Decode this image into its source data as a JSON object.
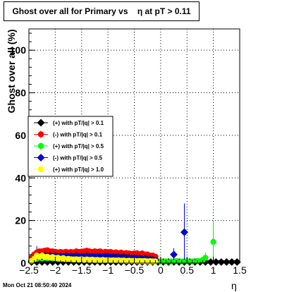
{
  "title": "Ghost over all for Primary vs    η at pT > 0.11",
  "footer": "Mon Oct 21 08:50:40 2024",
  "chart_data": {
    "type": "scatter",
    "title": "Ghost over all for Primary vs    η at pT > 0.11",
    "xlabel": "η",
    "ylabel": "Ghost over all (%)",
    "xlim": [
      -2.5,
      1.5
    ],
    "ylim": [
      0,
      110
    ],
    "x_ticks": [
      -2.5,
      -2,
      -1.5,
      -1,
      -0.5,
      0,
      0.5,
      1,
      1.5
    ],
    "x_tick_labels": [
      "−2.5",
      "−2",
      "−1.5",
      "−1",
      "−0.5",
      "0",
      "0.5",
      "1",
      "1.5"
    ],
    "y_ticks": [
      0,
      20,
      40,
      60,
      80,
      100
    ],
    "y_tick_labels": [
      "0",
      "20",
      "40",
      "60",
      "80",
      "100"
    ],
    "grid": true,
    "legend_position": "left-middle",
    "series": [
      {
        "name": "(+) with pT/|q| > 0.1",
        "color": "#000000",
        "marker": "diamond",
        "points": [
          [
            -2.45,
            0.5
          ],
          [
            -2.35,
            0.5
          ],
          [
            -2.25,
            0.5
          ],
          [
            -2.15,
            0.5
          ],
          [
            -2.05,
            0.5
          ],
          [
            -1.95,
            0.5
          ],
          [
            -1.85,
            0.5
          ],
          [
            -1.75,
            0.5
          ],
          [
            -1.65,
            0.5
          ],
          [
            -1.55,
            0.5
          ],
          [
            -1.45,
            0.5
          ],
          [
            -1.35,
            0.5
          ],
          [
            -1.25,
            0.5
          ],
          [
            -1.15,
            0.5
          ],
          [
            -1.05,
            0.5
          ],
          [
            -0.95,
            0.5
          ],
          [
            -0.85,
            0.5
          ],
          [
            -0.75,
            0.5
          ],
          [
            -0.65,
            0.5
          ],
          [
            -0.55,
            0.5
          ],
          [
            -0.45,
            0.5
          ],
          [
            -0.35,
            0.5
          ],
          [
            -0.25,
            0.5
          ],
          [
            -0.15,
            0.5
          ],
          [
            -0.05,
            0.5
          ],
          [
            0.05,
            0.5
          ],
          [
            0.15,
            0.5
          ],
          [
            0.25,
            0.5
          ],
          [
            0.35,
            0.5
          ],
          [
            0.45,
            0.5
          ],
          [
            0.55,
            0.5
          ],
          [
            0.65,
            0.5
          ],
          [
            0.75,
            0.5
          ],
          [
            0.85,
            0.5
          ],
          [
            0.95,
            0.5
          ],
          [
            1.05,
            0.5
          ],
          [
            1.15,
            0.5
          ],
          [
            1.25,
            0.5
          ],
          [
            1.35,
            0.5
          ],
          [
            1.45,
            0.5
          ]
        ]
      },
      {
        "name": "(-) with pT/|q| > 0.1",
        "color": "#ff0000",
        "marker": "circle",
        "points": [
          [
            -2.45,
            2.5
          ],
          [
            -2.4,
            4.0
          ],
          [
            -2.35,
            5.0
          ],
          [
            -2.3,
            5.5
          ],
          [
            -2.25,
            5.5
          ],
          [
            -2.2,
            5.8
          ],
          [
            -2.15,
            6.0
          ],
          [
            -2.1,
            5.5
          ],
          [
            -2.05,
            5.5
          ],
          [
            -2.0,
            5.3
          ],
          [
            -1.95,
            5.0
          ],
          [
            -1.9,
            5.2
          ],
          [
            -1.85,
            5.0
          ],
          [
            -1.8,
            5.3
          ],
          [
            -1.75,
            5.0
          ],
          [
            -1.7,
            5.2
          ],
          [
            -1.65,
            5.0
          ],
          [
            -1.6,
            5.5
          ],
          [
            -1.55,
            5.2
          ],
          [
            -1.5,
            5.4
          ],
          [
            -1.45,
            5.5
          ],
          [
            -1.4,
            5.8
          ],
          [
            -1.35,
            5.5
          ],
          [
            -1.3,
            5.2
          ],
          [
            -1.25,
            5.5
          ],
          [
            -1.2,
            5.3
          ],
          [
            -1.15,
            5.5
          ],
          [
            -1.1,
            5.0
          ],
          [
            -1.05,
            5.3
          ],
          [
            -1.0,
            5.0
          ],
          [
            -0.95,
            5.2
          ],
          [
            -0.9,
            4.8
          ],
          [
            -0.85,
            5.0
          ],
          [
            -0.8,
            4.7
          ],
          [
            -0.75,
            4.9
          ],
          [
            -0.7,
            4.5
          ],
          [
            -0.65,
            4.7
          ],
          [
            -0.6,
            4.5
          ],
          [
            -0.55,
            4.3
          ],
          [
            -0.5,
            4.5
          ],
          [
            -0.45,
            4.6
          ],
          [
            -0.4,
            4.2
          ],
          [
            -0.35,
            4.5
          ],
          [
            -0.3,
            4.0
          ],
          [
            -0.25,
            4.0
          ],
          [
            -0.2,
            3.5
          ],
          [
            -0.15,
            3.5
          ],
          [
            -0.1,
            3.0
          ]
        ]
      },
      {
        "name": "(+) with pT/|q| > 0.5",
        "color": "#00ff00",
        "marker": "circle",
        "points": [
          [
            -2.45,
            1.0
          ],
          [
            -2.4,
            1.8
          ],
          [
            -2.35,
            2.0
          ],
          [
            -2.3,
            2.5
          ],
          [
            -2.25,
            2.2
          ],
          [
            -2.2,
            2.5
          ],
          [
            -2.15,
            2.3
          ],
          [
            -2.1,
            2.5
          ],
          [
            -2.05,
            2.2
          ],
          [
            -2.0,
            2.4
          ],
          [
            -1.95,
            2.0
          ],
          [
            -1.9,
            2.2
          ],
          [
            -1.85,
            2.0
          ],
          [
            -1.8,
            2.3
          ],
          [
            -1.75,
            2.0
          ],
          [
            -1.7,
            2.2
          ],
          [
            -1.65,
            2.0
          ],
          [
            -1.6,
            2.2
          ],
          [
            -1.55,
            2.0
          ],
          [
            -1.5,
            2.3
          ],
          [
            -1.45,
            2.0
          ],
          [
            -1.4,
            2.2
          ],
          [
            -1.35,
            2.0
          ],
          [
            -1.3,
            2.1
          ],
          [
            -1.25,
            2.0
          ],
          [
            -1.2,
            2.2
          ],
          [
            -1.15,
            2.0
          ],
          [
            -1.1,
            2.1
          ],
          [
            -1.05,
            2.0
          ],
          [
            -1.0,
            2.2
          ],
          [
            -0.95,
            1.8
          ],
          [
            -0.9,
            2.0
          ],
          [
            -0.85,
            1.8
          ],
          [
            -0.8,
            2.0
          ],
          [
            -0.75,
            1.7
          ],
          [
            -0.7,
            1.9
          ],
          [
            -0.65,
            1.6
          ],
          [
            -0.6,
            1.8
          ],
          [
            -0.55,
            1.5
          ],
          [
            -0.5,
            1.7
          ],
          [
            -0.45,
            1.4
          ],
          [
            -0.4,
            1.6
          ],
          [
            -0.35,
            1.3
          ],
          [
            -0.3,
            1.5
          ],
          [
            -0.25,
            1.2
          ],
          [
            -0.2,
            1.3
          ],
          [
            -0.15,
            1.2
          ],
          [
            -0.1,
            1.0
          ],
          [
            0.0,
            0.8
          ],
          [
            0.1,
            0.8
          ],
          [
            0.2,
            0.8
          ],
          [
            0.3,
            0.9
          ],
          [
            0.4,
            0.8
          ],
          [
            0.5,
            0.9
          ],
          [
            0.6,
            0.8
          ],
          [
            0.7,
            1.0
          ],
          [
            0.8,
            1.5
          ],
          [
            0.85,
            2.5
          ],
          [
            1.0,
            10.0
          ]
        ],
        "error_bars": [
          {
            "x": 0.85,
            "low": 0.0,
            "high": 5.0
          },
          {
            "x": 1.0,
            "low": 0.0,
            "high": 20.0
          }
        ]
      },
      {
        "name": "(-) with pT/|q| > 0.5",
        "color": "#0000ff",
        "marker": "diamond",
        "points": [
          [
            -2.45,
            1.0
          ],
          [
            -2.4,
            2.0
          ],
          [
            -2.35,
            3.0
          ],
          [
            -2.3,
            3.5
          ],
          [
            -2.25,
            3.2
          ],
          [
            -2.2,
            3.5
          ],
          [
            -2.15,
            3.3
          ],
          [
            -2.1,
            3.5
          ],
          [
            -2.05,
            3.2
          ],
          [
            -2.0,
            3.4
          ],
          [
            -1.95,
            3.0
          ],
          [
            -1.9,
            3.2
          ],
          [
            -1.85,
            3.0
          ],
          [
            -1.8,
            3.4
          ],
          [
            -1.75,
            3.1
          ],
          [
            -1.7,
            3.3
          ],
          [
            -1.65,
            3.0
          ],
          [
            -1.6,
            3.3
          ],
          [
            -1.55,
            3.0
          ],
          [
            -1.5,
            3.2
          ],
          [
            -1.45,
            3.0
          ],
          [
            -1.4,
            3.3
          ],
          [
            -1.35,
            3.0
          ],
          [
            -1.3,
            3.2
          ],
          [
            -1.25,
            3.0
          ],
          [
            -1.2,
            3.2
          ],
          [
            -1.15,
            3.0
          ],
          [
            -1.1,
            3.1
          ],
          [
            -1.05,
            3.0
          ],
          [
            -1.0,
            3.2
          ],
          [
            -0.95,
            2.8
          ],
          [
            -0.9,
            3.0
          ],
          [
            -0.85,
            2.8
          ],
          [
            -0.8,
            3.0
          ],
          [
            -0.75,
            2.6
          ],
          [
            -0.7,
            2.8
          ],
          [
            -0.65,
            2.5
          ],
          [
            -0.6,
            2.6
          ],
          [
            -0.55,
            2.3
          ],
          [
            -0.5,
            2.5
          ],
          [
            -0.45,
            2.2
          ],
          [
            -0.4,
            2.3
          ],
          [
            -0.35,
            2.0
          ],
          [
            -0.3,
            2.1
          ],
          [
            -0.25,
            1.8
          ],
          [
            -0.2,
            1.8
          ],
          [
            -0.15,
            1.5
          ],
          [
            -0.1,
            1.3
          ],
          [
            0.25,
            4.0
          ],
          [
            0.45,
            14.5
          ]
        ],
        "error_bars": [
          {
            "x": -2.35,
            "low": 0.0,
            "high": 8.0
          },
          {
            "x": 0.25,
            "low": 0.0,
            "high": 7.0
          },
          {
            "x": 0.45,
            "low": 1.0,
            "high": 28.0
          }
        ]
      },
      {
        "name": "(+) with pT/|q| > 1.0",
        "color": "#ffff00",
        "marker": "circle",
        "points": [
          [
            -2.45,
            1.0
          ],
          [
            -2.4,
            2.0
          ],
          [
            -2.35,
            3.5
          ],
          [
            -2.3,
            3.0
          ],
          [
            -2.25,
            3.5
          ],
          [
            -2.2,
            2.8
          ],
          [
            -2.15,
            3.0
          ],
          [
            -2.1,
            2.5
          ],
          [
            -2.05,
            2.8
          ],
          [
            -2.0,
            2.3
          ],
          [
            -1.95,
            2.5
          ],
          [
            -1.9,
            2.0
          ],
          [
            -1.85,
            2.3
          ],
          [
            -1.8,
            1.8
          ],
          [
            -1.75,
            2.0
          ],
          [
            -1.7,
            1.8
          ],
          [
            -1.65,
            1.7
          ],
          [
            -1.6,
            1.8
          ],
          [
            -1.55,
            1.6
          ],
          [
            -1.5,
            1.8
          ],
          [
            -1.45,
            1.5
          ],
          [
            -1.4,
            1.7
          ],
          [
            -1.35,
            1.5
          ],
          [
            -1.3,
            1.6
          ],
          [
            -1.25,
            1.4
          ],
          [
            -1.2,
            1.5
          ],
          [
            -1.15,
            1.3
          ],
          [
            -1.1,
            1.5
          ],
          [
            -1.05,
            1.3
          ],
          [
            -1.0,
            1.4
          ],
          [
            -0.95,
            1.2
          ],
          [
            -0.9,
            1.3
          ],
          [
            -0.85,
            1.2
          ],
          [
            -0.8,
            1.3
          ],
          [
            -0.75,
            1.1
          ],
          [
            -0.7,
            1.2
          ],
          [
            -0.65,
            1.0
          ],
          [
            -0.6,
            1.1
          ],
          [
            -0.55,
            1.0
          ],
          [
            -0.5,
            1.1
          ],
          [
            -0.45,
            0.9
          ],
          [
            -0.4,
            1.0
          ],
          [
            -0.35,
            0.9
          ],
          [
            -0.3,
            1.0
          ],
          [
            -0.25,
            0.8
          ],
          [
            -0.2,
            0.9
          ],
          [
            -0.15,
            0.8
          ],
          [
            -0.1,
            0.8
          ]
        ]
      }
    ]
  }
}
